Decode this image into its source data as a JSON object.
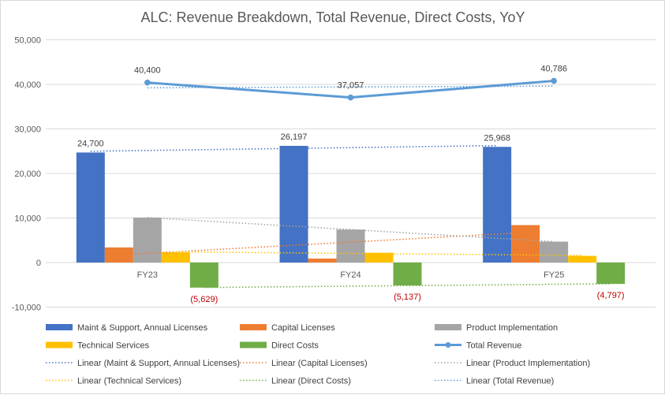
{
  "chart_data": {
    "type": "bar",
    "title": "ALC: Revenue Breakdown, Total Revenue, Direct Costs, YoY",
    "categories": [
      "FY23",
      "FY24",
      "FY25"
    ],
    "ylim": [
      -10000,
      50000
    ],
    "yticks": [
      -10000,
      0,
      10000,
      20000,
      30000,
      40000,
      50000
    ],
    "ytick_labels": [
      "-10,000",
      "0",
      "10,000",
      "20,000",
      "30,000",
      "40,000",
      "50,000"
    ],
    "grid": true,
    "legend_position": "bottom",
    "series": [
      {
        "name": "Maint & Support, Annual Licenses",
        "kind": "bar",
        "color": "#4472c4",
        "values": [
          24700,
          26197,
          25968
        ],
        "labels": [
          "24,700",
          "26,197",
          "25,968"
        ]
      },
      {
        "name": "Capital Licenses",
        "kind": "bar",
        "color": "#ed7d31",
        "values": [
          3400,
          900,
          8400
        ]
      },
      {
        "name": "Product Implementation",
        "kind": "bar",
        "color": "#a5a5a5",
        "values": [
          10100,
          7400,
          4700
        ]
      },
      {
        "name": "Technical Services",
        "kind": "bar",
        "color": "#ffc000",
        "values": [
          2300,
          2200,
          1500
        ]
      },
      {
        "name": "Direct Costs",
        "kind": "bar",
        "color": "#70ad47",
        "values": [
          -5629,
          -5137,
          -4797
        ],
        "labels": [
          "(5,629)",
          "(5,137)",
          "(4,797)"
        ]
      },
      {
        "name": "Total Revenue",
        "kind": "line",
        "color": "#5b9bd5",
        "values": [
          40400,
          37057,
          40786
        ],
        "labels": [
          "40,400",
          "37,057",
          "40,786"
        ]
      }
    ],
    "trendlines": [
      {
        "name": "Linear (Maint & Support, Annual Licenses)",
        "color": "#4472c4",
        "series": 0
      },
      {
        "name": "Linear (Capital Licenses)",
        "color": "#ed7d31",
        "series": 1
      },
      {
        "name": "Linear (Product Implementation)",
        "color": "#a5a5a5",
        "series": 2
      },
      {
        "name": "Linear (Technical Services)",
        "color": "#ffc000",
        "series": 3
      },
      {
        "name": "Linear (Direct Costs)",
        "color": "#70ad47",
        "series": 4
      },
      {
        "name": "Linear (Total Revenue)",
        "color": "#5b9bd5",
        "series": 5
      }
    ],
    "label_negative_color": "#c00000"
  }
}
